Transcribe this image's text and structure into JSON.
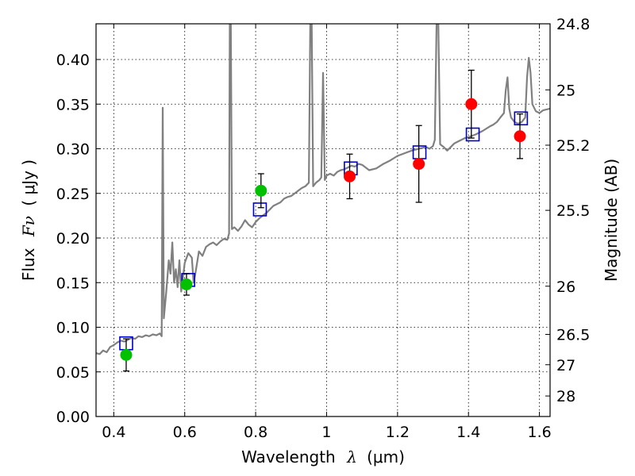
{
  "chart_data": {
    "type": "line",
    "title": "",
    "xlabel_text": "Wavelength",
    "xlabel_symbol": "λ",
    "xlabel_unit": "(μm)",
    "ylabel_text": "Flux",
    "ylabel_symbol": "Fν",
    "ylabel_unit": "( μJy )",
    "y2label": "Magnitude (AB)",
    "xlim": [
      0.35,
      1.63
    ],
    "ylim": [
      0.0,
      0.44
    ],
    "grid": true,
    "x_ticks": [
      {
        "value": 0.4,
        "label": "0.4"
      },
      {
        "value": 0.6,
        "label": "0.6"
      },
      {
        "value": 0.8,
        "label": "0.8"
      },
      {
        "value": 1.0,
        "label": "1"
      },
      {
        "value": 1.2,
        "label": "1.2"
      },
      {
        "value": 1.4,
        "label": "1.4"
      },
      {
        "value": 1.6,
        "label": "1.6"
      }
    ],
    "y_ticks": [
      {
        "value": 0.0,
        "label": "0.00"
      },
      {
        "value": 0.05,
        "label": "0.05"
      },
      {
        "value": 0.1,
        "label": "0.10"
      },
      {
        "value": 0.15,
        "label": "0.15"
      },
      {
        "value": 0.2,
        "label": "0.20"
      },
      {
        "value": 0.25,
        "label": "0.25"
      },
      {
        "value": 0.3,
        "label": "0.30"
      },
      {
        "value": 0.35,
        "label": "0.35"
      },
      {
        "value": 0.4,
        "label": "0.40"
      }
    ],
    "y2_ticks": [
      {
        "label": "24.8",
        "flux": 0.44
      },
      {
        "label": "25",
        "flux": 0.366
      },
      {
        "label": "25.2",
        "flux": 0.304
      },
      {
        "label": "25.5",
        "flux": 0.231
      },
      {
        "label": "26",
        "flux": 0.146
      },
      {
        "label": "26.5",
        "flux": 0.092
      },
      {
        "label": "27",
        "flux": 0.058
      },
      {
        "label": "28",
        "flux": 0.023
      }
    ],
    "colors": {
      "spectrum": "#808080",
      "model_boxes": "#0000cc",
      "green_points": "#00c000",
      "red_points": "#ff0000"
    },
    "spectrum": [
      [
        0.35,
        0.071
      ],
      [
        0.36,
        0.07
      ],
      [
        0.37,
        0.074
      ],
      [
        0.38,
        0.072
      ],
      [
        0.39,
        0.078
      ],
      [
        0.4,
        0.08
      ],
      [
        0.41,
        0.083
      ],
      [
        0.42,
        0.085
      ],
      [
        0.43,
        0.084
      ],
      [
        0.44,
        0.086
      ],
      [
        0.45,
        0.088
      ],
      [
        0.46,
        0.087
      ],
      [
        0.47,
        0.09
      ],
      [
        0.48,
        0.089
      ],
      [
        0.49,
        0.091
      ],
      [
        0.5,
        0.09
      ],
      [
        0.51,
        0.092
      ],
      [
        0.52,
        0.091
      ],
      [
        0.53,
        0.093
      ],
      [
        0.535,
        0.09
      ],
      [
        0.538,
        0.346
      ],
      [
        0.541,
        0.11
      ],
      [
        0.548,
        0.14
      ],
      [
        0.555,
        0.175
      ],
      [
        0.56,
        0.16
      ],
      [
        0.565,
        0.195
      ],
      [
        0.57,
        0.15
      ],
      [
        0.575,
        0.165
      ],
      [
        0.58,
        0.145
      ],
      [
        0.585,
        0.175
      ],
      [
        0.59,
        0.14
      ],
      [
        0.6,
        0.172
      ],
      [
        0.61,
        0.183
      ],
      [
        0.62,
        0.178
      ],
      [
        0.625,
        0.15
      ],
      [
        0.63,
        0.16
      ],
      [
        0.64,
        0.185
      ],
      [
        0.65,
        0.18
      ],
      [
        0.66,
        0.19
      ],
      [
        0.67,
        0.193
      ],
      [
        0.68,
        0.195
      ],
      [
        0.69,
        0.192
      ],
      [
        0.7,
        0.196
      ],
      [
        0.71,
        0.199
      ],
      [
        0.72,
        0.198
      ],
      [
        0.725,
        0.205
      ],
      [
        0.727,
        0.44
      ],
      [
        0.73,
        0.44
      ],
      [
        0.733,
        0.21
      ],
      [
        0.74,
        0.212
      ],
      [
        0.75,
        0.208
      ],
      [
        0.76,
        0.213
      ],
      [
        0.77,
        0.22
      ],
      [
        0.78,
        0.215
      ],
      [
        0.79,
        0.212
      ],
      [
        0.8,
        0.218
      ],
      [
        0.81,
        0.222
      ],
      [
        0.82,
        0.225
      ],
      [
        0.83,
        0.228
      ],
      [
        0.84,
        0.232
      ],
      [
        0.85,
        0.236
      ],
      [
        0.86,
        0.238
      ],
      [
        0.87,
        0.24
      ],
      [
        0.88,
        0.244
      ],
      [
        0.89,
        0.246
      ],
      [
        0.9,
        0.247
      ],
      [
        0.91,
        0.25
      ],
      [
        0.92,
        0.253
      ],
      [
        0.93,
        0.256
      ],
      [
        0.94,
        0.258
      ],
      [
        0.95,
        0.262
      ],
      [
        0.954,
        0.44
      ],
      [
        0.958,
        0.44
      ],
      [
        0.962,
        0.258
      ],
      [
        0.97,
        0.262
      ],
      [
        0.98,
        0.265
      ],
      [
        0.985,
        0.268
      ],
      [
        0.99,
        0.385
      ],
      [
        0.995,
        0.265
      ],
      [
        1.0,
        0.27
      ],
      [
        1.01,
        0.272
      ],
      [
        1.02,
        0.27
      ],
      [
        1.03,
        0.274
      ],
      [
        1.04,
        0.276
      ],
      [
        1.05,
        0.277
      ],
      [
        1.06,
        0.279
      ],
      [
        1.07,
        0.281
      ],
      [
        1.08,
        0.28
      ],
      [
        1.09,
        0.283
      ],
      [
        1.1,
        0.282
      ],
      [
        1.12,
        0.276
      ],
      [
        1.14,
        0.278
      ],
      [
        1.16,
        0.283
      ],
      [
        1.18,
        0.287
      ],
      [
        1.2,
        0.292
      ],
      [
        1.22,
        0.295
      ],
      [
        1.24,
        0.298
      ],
      [
        1.26,
        0.3
      ],
      [
        1.27,
        0.301
      ],
      [
        1.28,
        0.302
      ],
      [
        1.29,
        0.3
      ],
      [
        1.3,
        0.303
      ],
      [
        1.305,
        0.31
      ],
      [
        1.31,
        0.44
      ],
      [
        1.315,
        0.44
      ],
      [
        1.32,
        0.305
      ],
      [
        1.33,
        0.302
      ],
      [
        1.34,
        0.298
      ],
      [
        1.35,
        0.302
      ],
      [
        1.36,
        0.306
      ],
      [
        1.37,
        0.308
      ],
      [
        1.38,
        0.31
      ],
      [
        1.39,
        0.312
      ],
      [
        1.4,
        0.313
      ],
      [
        1.42,
        0.316
      ],
      [
        1.44,
        0.32
      ],
      [
        1.46,
        0.325
      ],
      [
        1.47,
        0.327
      ],
      [
        1.48,
        0.33
      ],
      [
        1.49,
        0.335
      ],
      [
        1.5,
        0.34
      ],
      [
        1.505,
        0.365
      ],
      [
        1.51,
        0.38
      ],
      [
        1.515,
        0.345
      ],
      [
        1.52,
        0.335
      ],
      [
        1.53,
        0.33
      ],
      [
        1.54,
        0.328
      ],
      [
        1.55,
        0.33
      ],
      [
        1.56,
        0.335
      ],
      [
        1.565,
        0.38
      ],
      [
        1.57,
        0.402
      ],
      [
        1.575,
        0.385
      ],
      [
        1.58,
        0.35
      ],
      [
        1.59,
        0.342
      ],
      [
        1.6,
        0.34
      ],
      [
        1.61,
        0.343
      ],
      [
        1.63,
        0.345
      ]
    ],
    "model_boxes": [
      {
        "x": 0.435,
        "y": 0.082
      },
      {
        "x": 0.61,
        "y": 0.153
      },
      {
        "x": 0.812,
        "y": 0.232
      },
      {
        "x": 1.068,
        "y": 0.278
      },
      {
        "x": 1.262,
        "y": 0.296
      },
      {
        "x": 1.412,
        "y": 0.316
      },
      {
        "x": 1.548,
        "y": 0.334
      }
    ],
    "green_points": [
      {
        "x": 0.435,
        "y": 0.069,
        "err": 0.018
      },
      {
        "x": 0.605,
        "y": 0.148,
        "err": 0.012
      },
      {
        "x": 0.815,
        "y": 0.253,
        "err": 0.019
      }
    ],
    "red_points": [
      {
        "x": 1.065,
        "y": 0.269,
        "err": 0.025
      },
      {
        "x": 1.26,
        "y": 0.283,
        "err": 0.043
      },
      {
        "x": 1.408,
        "y": 0.35,
        "err": 0.038
      },
      {
        "x": 1.545,
        "y": 0.314,
        "err": 0.025
      }
    ]
  }
}
